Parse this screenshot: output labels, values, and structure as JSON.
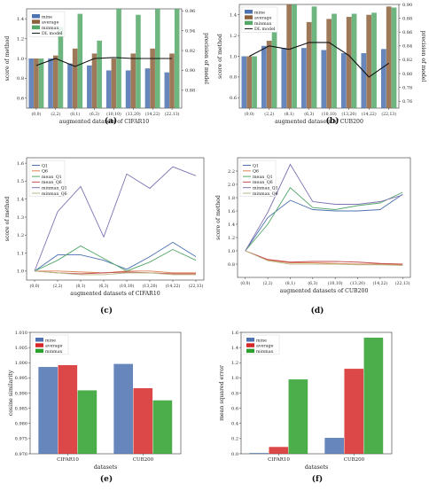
{
  "figure": {
    "captions": [
      "(a)",
      "(b)",
      "(c)",
      "(d)",
      "(e)",
      "(f)"
    ]
  },
  "chart_data": [
    {
      "panel": "(a)",
      "type": "bar",
      "xlabel": "augmented datasets of CIFAR10",
      "ylabel": "score of method",
      "y2label": "precision of model",
      "categories": [
        "(0,0)",
        "(2,2)",
        "(8,1)",
        "(6,3)",
        "(10,10)",
        "(13,20)",
        "(14,22)",
        "(22,13)"
      ],
      "ylim": [
        0.5,
        1.5
      ],
      "yticks": [
        "0.6",
        "0.8",
        "1.0",
        "1.2",
        "1.4"
      ],
      "y2lim": [
        0.862,
        0.962
      ],
      "y2ticks": [
        "0.88",
        "0.90",
        "0.92",
        "0.94",
        "0.96"
      ],
      "series": [
        {
          "name": "mine",
          "color": "#4c72b0",
          "values": [
            1.0,
            1.0,
            0.95,
            0.93,
            0.88,
            0.88,
            0.9,
            0.86
          ]
        },
        {
          "name": "average",
          "color": "#8c613c",
          "values": [
            1.0,
            1.03,
            1.1,
            1.05,
            1.0,
            1.05,
            1.1,
            1.05
          ]
        },
        {
          "name": "minmax",
          "color": "#55a868",
          "values": [
            1.0,
            1.32,
            1.45,
            1.18,
            1.5,
            1.44,
            1.5,
            1.5
          ]
        }
      ],
      "line": {
        "name": "DL model",
        "color": "#111111",
        "values": [
          0.905,
          0.912,
          0.904,
          0.912,
          0.913,
          0.912,
          0.912,
          0.912
        ]
      },
      "legend": "top-left"
    },
    {
      "panel": "(b)",
      "type": "bar",
      "xlabel": "augmented datasets of CUB200",
      "ylabel": "score of method",
      "y2label": "precision of model",
      "categories": [
        "(0,0)",
        "(2,2)",
        "(8,1)",
        "(6,3)",
        "(10,10)",
        "(13,20)",
        "(14,22)",
        "(22,13)"
      ],
      "ylim": [
        0.5,
        1.5
      ],
      "yticks": [
        "0.6",
        "0.8",
        "1.0",
        "1.2",
        "1.4"
      ],
      "y2lim": [
        0.75,
        0.9
      ],
      "y2ticks": [
        "0.76",
        "0.78",
        "0.80",
        "0.82",
        "0.84",
        "0.86",
        "0.88",
        "0.90"
      ],
      "series": [
        {
          "name": "mine",
          "color": "#4c72b0",
          "values": [
            1.0,
            1.1,
            1.08,
            1.08,
            1.06,
            1.03,
            1.03,
            1.07
          ]
        },
        {
          "name": "average",
          "color": "#8c613c",
          "values": [
            1.0,
            1.15,
            1.5,
            1.33,
            1.36,
            1.38,
            1.4,
            1.48
          ]
        },
        {
          "name": "minmax",
          "color": "#55a868",
          "values": [
            1.0,
            1.23,
            1.5,
            1.48,
            1.41,
            1.41,
            1.42,
            1.47
          ]
        }
      ],
      "line": {
        "name": "DL model",
        "color": "#111111",
        "values": [
          0.825,
          0.84,
          0.835,
          0.845,
          0.845,
          0.826,
          0.795,
          0.815
        ]
      },
      "legend": "top-left"
    },
    {
      "panel": "(c)",
      "type": "line",
      "xlabel": "augmented datasets of CIFAR10",
      "ylabel": "score of method",
      "categories": [
        "(0,0)",
        "(2,2)",
        "(8,1)",
        "(6,3)",
        "(10,10)",
        "(13,20)",
        "(14,22)",
        "(22,13)"
      ],
      "ylim": [
        0.95,
        1.63
      ],
      "yticks": [
        "1.0",
        "1.1",
        "1.2",
        "1.3",
        "1.4",
        "1.5",
        "1.6"
      ],
      "series": [
        {
          "name": "Q1",
          "color": "#4c72b0",
          "values": [
            1.0,
            1.09,
            1.09,
            1.06,
            1.01,
            1.08,
            1.16,
            1.08
          ]
        },
        {
          "name": "Q6",
          "color": "#dd8452",
          "values": [
            1.0,
            1.0,
            0.995,
            0.99,
            1.0,
            1.0,
            0.99,
            0.99
          ]
        },
        {
          "name": "mean_Q1",
          "color": "#55a868",
          "values": [
            1.0,
            1.06,
            1.14,
            1.07,
            1.0,
            1.05,
            1.12,
            1.06
          ]
        },
        {
          "name": "mean_Q6",
          "color": "#c44e52",
          "values": [
            1.0,
            0.99,
            0.985,
            0.99,
            0.995,
            0.99,
            0.985,
            0.985
          ]
        },
        {
          "name": "minmax_Q1",
          "color": "#8172b3",
          "values": [
            1.0,
            1.33,
            1.47,
            1.19,
            1.54,
            1.46,
            1.58,
            1.53
          ]
        },
        {
          "name": "minmax_Q6",
          "color": "#b8b88a",
          "values": [
            1.0,
            0.99,
            0.98,
            0.98,
            0.99,
            0.99,
            0.98,
            0.98
          ]
        }
      ],
      "legend": "top-left"
    },
    {
      "panel": "(d)",
      "type": "line",
      "xlabel": "augmented datasets of CUB200",
      "ylabel": "score of method",
      "categories": [
        "(0,0)",
        "(2,2)",
        "(8,1)",
        "(6,3)",
        "(10,10)",
        "(13,20)",
        "(14,22)",
        "(22,13)"
      ],
      "ylim": [
        0.6,
        2.4
      ],
      "yticks": [
        "0.8",
        "1.0",
        "1.2",
        "1.4",
        "1.6",
        "1.8",
        "2.0",
        "2.2"
      ],
      "series": [
        {
          "name": "Q1",
          "color": "#4c72b0",
          "values": [
            1.0,
            1.5,
            1.76,
            1.62,
            1.6,
            1.6,
            1.62,
            1.85
          ]
        },
        {
          "name": "Q6",
          "color": "#dd8452",
          "values": [
            1.0,
            0.86,
            0.82,
            0.82,
            0.81,
            0.8,
            0.8,
            0.79
          ]
        },
        {
          "name": "mean_Q1",
          "color": "#55a868",
          "values": [
            1.0,
            1.4,
            1.95,
            1.65,
            1.62,
            1.68,
            1.72,
            1.88
          ]
        },
        {
          "name": "mean_Q6",
          "color": "#c44e52",
          "values": [
            1.0,
            0.87,
            0.83,
            0.84,
            0.84,
            0.83,
            0.81,
            0.8
          ]
        },
        {
          "name": "minmax_Q1",
          "color": "#8172b3",
          "values": [
            1.0,
            1.58,
            2.3,
            1.74,
            1.7,
            1.7,
            1.74,
            1.84
          ]
        },
        {
          "name": "minmax_Q6",
          "color": "#b8b88a",
          "values": [
            1.0,
            0.85,
            0.8,
            0.8,
            0.8,
            0.79,
            0.79,
            0.78
          ]
        }
      ],
      "legend": "top-left"
    },
    {
      "panel": "(e)",
      "type": "bar",
      "xlabel": "datasets",
      "ylabel": "cosine similarity",
      "categories": [
        "CIFAR10",
        "CUB200"
      ],
      "ylim": [
        0.97,
        1.01
      ],
      "yticks": [
        "0.970",
        "0.975",
        "0.980",
        "0.985",
        "0.990",
        "0.995",
        "1.000",
        "1.005",
        "1.010"
      ],
      "series": [
        {
          "name": "mine",
          "color": "#4c72b0",
          "values": [
            0.9986,
            0.9996
          ]
        },
        {
          "name": "average",
          "color": "#d62728",
          "values": [
            0.9992,
            0.9916
          ]
        },
        {
          "name": "minmax",
          "color": "#2ca02c",
          "values": [
            0.9909,
            0.9876
          ]
        }
      ],
      "legend": "top-left"
    },
    {
      "panel": "(f)",
      "type": "bar",
      "xlabel": "datasets",
      "ylabel": "mean squared error",
      "categories": [
        "CIFAR10",
        "CUB200"
      ],
      "ylim": [
        0.0,
        1.6
      ],
      "yticks": [
        "0.0",
        "0.2",
        "0.4",
        "0.6",
        "0.8",
        "1.0",
        "1.2",
        "1.4",
        "1.6"
      ],
      "series": [
        {
          "name": "mine",
          "color": "#4c72b0",
          "values": [
            0.01,
            0.21
          ]
        },
        {
          "name": "average",
          "color": "#d62728",
          "values": [
            0.09,
            1.12
          ]
        },
        {
          "name": "minmax",
          "color": "#2ca02c",
          "values": [
            0.98,
            1.53
          ]
        }
      ],
      "legend": "top-left"
    }
  ]
}
